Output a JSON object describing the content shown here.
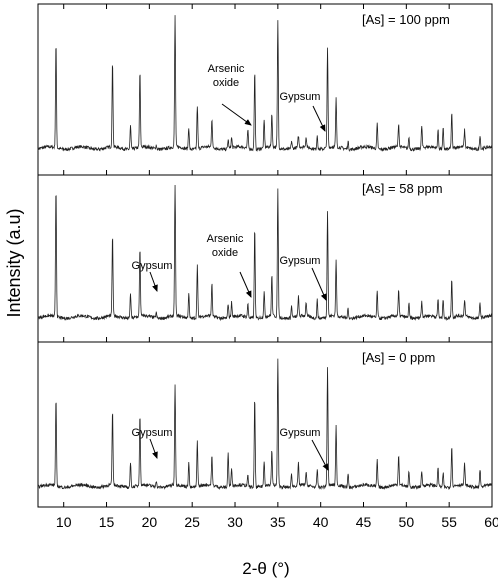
{
  "chart_data": {
    "type": "line",
    "xlabel": "2-θ (°)",
    "ylabel": "Intensity (a.u)",
    "xlim": [
      7,
      60
    ],
    "xticks": [
      10,
      15,
      20,
      25,
      30,
      35,
      40,
      45,
      50,
      55,
      60
    ],
    "layout": "three stacked panels sharing x-axis",
    "peak_positions_2theta": [
      9.1,
      15.7,
      17.8,
      18.9,
      20.8,
      23.0,
      24.6,
      25.6,
      27.3,
      29.2,
      29.6,
      31.5,
      32.3,
      33.4,
      34.3,
      35.0,
      36.6,
      37.4,
      38.3,
      39.6,
      40.8,
      41.8,
      43.2,
      46.6,
      49.1,
      50.3,
      51.8,
      53.7,
      54.3,
      55.3,
      56.8,
      58.6
    ],
    "panels": [
      {
        "label": "[As] = 100 ppm",
        "relative_intensity": [
          0.8,
          0.65,
          0.18,
          0.58,
          0.03,
          1.0,
          0.17,
          0.33,
          0.22,
          0.07,
          0.08,
          0.14,
          0.6,
          0.21,
          0.26,
          0.98,
          0.06,
          0.09,
          0.08,
          0.11,
          0.76,
          0.37,
          0.06,
          0.19,
          0.18,
          0.09,
          0.17,
          0.14,
          0.16,
          0.27,
          0.13,
          0.11
        ],
        "annotations": [
          "Arsenic oxide",
          "Gypsum"
        ]
      },
      {
        "label": "[As] = 58 ppm",
        "relative_intensity": [
          0.98,
          0.61,
          0.19,
          0.52,
          0.04,
          1.0,
          0.19,
          0.4,
          0.25,
          0.11,
          0.11,
          0.1,
          0.68,
          0.19,
          0.31,
          0.96,
          0.09,
          0.15,
          0.11,
          0.14,
          0.8,
          0.42,
          0.08,
          0.2,
          0.19,
          0.11,
          0.12,
          0.14,
          0.15,
          0.29,
          0.13,
          0.12
        ],
        "annotations": [
          "Gypsum",
          "Arsenic oxide",
          "Gypsum"
        ]
      },
      {
        "label": "[As] = 0 ppm",
        "relative_intensity": [
          0.68,
          0.58,
          0.19,
          0.56,
          0.05,
          0.79,
          0.2,
          0.36,
          0.23,
          0.27,
          0.15,
          0.08,
          0.7,
          0.2,
          0.27,
          1.0,
          0.1,
          0.17,
          0.1,
          0.14,
          0.93,
          0.46,
          0.1,
          0.21,
          0.24,
          0.12,
          0.11,
          0.15,
          0.11,
          0.32,
          0.17,
          0.14
        ],
        "annotations": [
          "Gypsum",
          "Gypsum"
        ]
      }
    ]
  }
}
